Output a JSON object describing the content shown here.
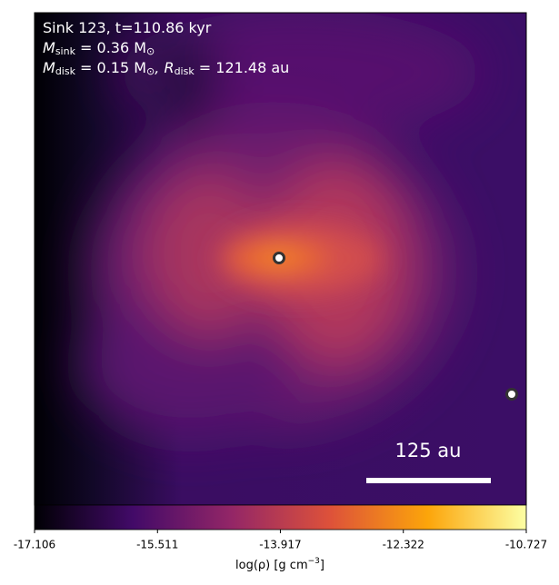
{
  "chart_data": {
    "type": "density-map",
    "info_lines": [
      [
        {
          "text": "Sink 123, t=110.86 kyr",
          "sub": false
        }
      ],
      [
        {
          "text": "M",
          "sub": false
        },
        {
          "text": "sink",
          "sub": true
        },
        {
          "text": " = 0.36 M",
          "sub": false
        },
        {
          "text": "⊙",
          "sub": true
        }
      ],
      [
        {
          "text": "M",
          "sub": false
        },
        {
          "text": "disk",
          "sub": true
        },
        {
          "text": " = 0.15 M",
          "sub": false
        },
        {
          "text": "⊙",
          "sub": true
        },
        {
          "text": ", R",
          "sub": false
        },
        {
          "text": "disk",
          "sub": true
        },
        {
          "text": " = 121.48 au",
          "sub": false
        }
      ]
    ],
    "scalebar_label": "125 au",
    "colorbar": {
      "clim": [
        -17.106,
        -10.727
      ],
      "ticks": [
        -17.106,
        -15.511,
        -13.917,
        -12.322,
        -10.727
      ],
      "colors": [
        "#000004",
        "#420a68",
        "#932667",
        "#dd513a",
        "#fca50a",
        "#fcffa4"
      ],
      "label": [
        {
          "text": "log(ρ) [g cm",
          "sup": false
        },
        {
          "text": "−3",
          "sup": true
        },
        {
          "text": "]",
          "sup": false
        }
      ]
    }
  }
}
